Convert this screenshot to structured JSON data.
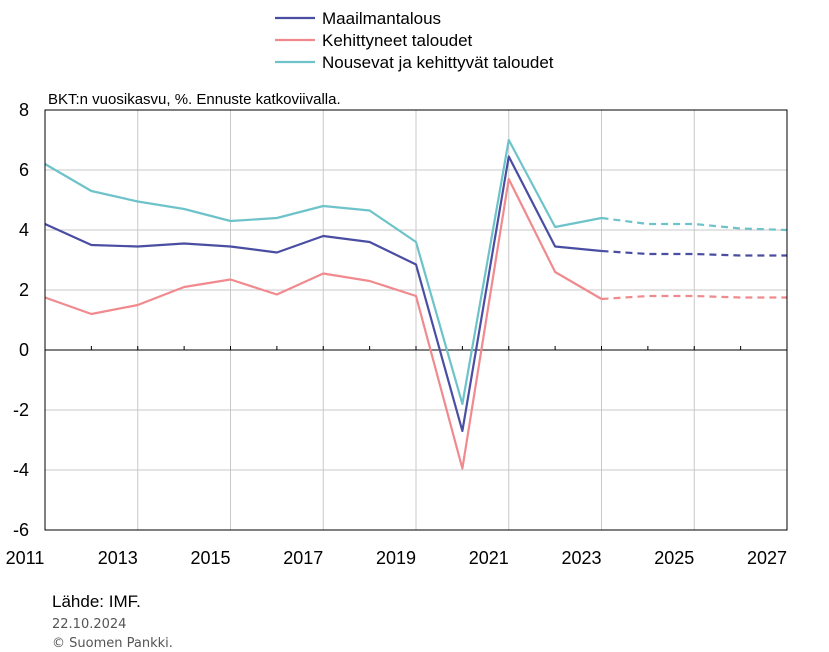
{
  "chart_data": {
    "type": "line",
    "note": "BKT:n vuosikasvu, %. Ennuste katkoviivalla.",
    "x": [
      2011,
      2012,
      2013,
      2014,
      2015,
      2016,
      2017,
      2018,
      2019,
      2020,
      2021,
      2022,
      2023,
      2024,
      2025,
      2026,
      2027
    ],
    "x_ticks": [
      2011,
      2013,
      2015,
      2017,
      2019,
      2021,
      2023,
      2025,
      2027
    ],
    "y_ticks": [
      -6,
      -4,
      -2,
      0,
      2,
      4,
      6,
      8
    ],
    "xlim": [
      2011,
      2027
    ],
    "ylim": [
      -6,
      8
    ],
    "forecast_from": 2023,
    "grid": true,
    "legend_position": "top-center",
    "series": [
      {
        "name": "Maailmantalous",
        "color": "#4a4ea3",
        "values": [
          4.2,
          3.5,
          3.45,
          3.55,
          3.45,
          3.25,
          3.8,
          3.6,
          2.85,
          -2.7,
          6.45,
          3.45,
          3.3,
          3.2,
          3.2,
          3.15,
          3.15
        ]
      },
      {
        "name": "Kehittyneet taloudet",
        "color": "#f08a8e",
        "values": [
          1.75,
          1.2,
          1.5,
          2.1,
          2.35,
          1.85,
          2.55,
          2.3,
          1.8,
          -3.95,
          5.7,
          2.6,
          1.7,
          1.8,
          1.8,
          1.75,
          1.75
        ]
      },
      {
        "name": "Nousevat ja kehittyvät taloudet",
        "color": "#6dc3c9",
        "values": [
          6.2,
          5.3,
          4.95,
          4.7,
          4.3,
          4.4,
          4.8,
          4.65,
          3.6,
          -1.8,
          7.0,
          4.1,
          4.4,
          4.2,
          4.2,
          4.05,
          4.0
        ]
      }
    ]
  },
  "footer": {
    "source": "Lähde: IMF.",
    "date": "22.10.2024",
    "copyright": "© Suomen Pankki."
  }
}
